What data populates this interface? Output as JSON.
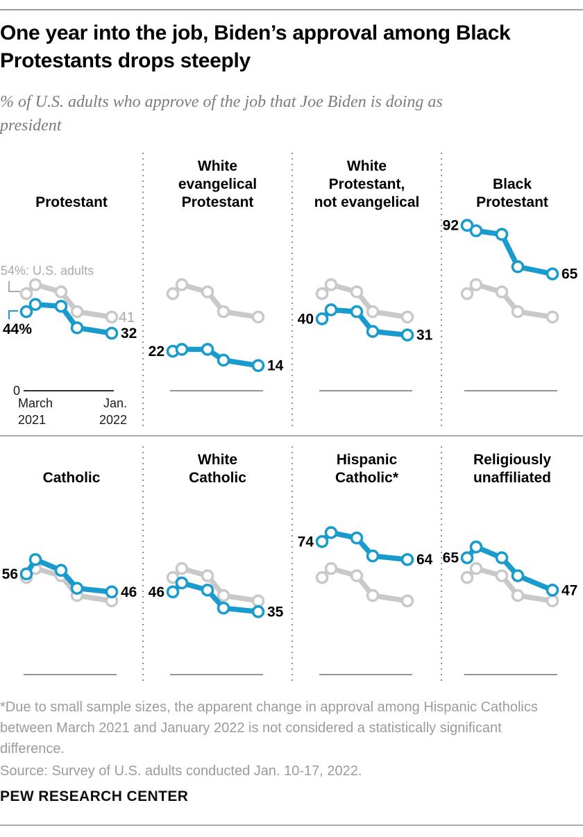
{
  "header": {
    "title": "One year into the job, Biden’s approval among Black Protestants drops steeply",
    "subtitle": "% of U.S. adults who approve of the job that Joe Biden is doing as president"
  },
  "colors": {
    "blue": "#1a9bcd",
    "gray_line": "#c9c9c9",
    "gray_text": "#a9a9a9",
    "axis_dark": "#111111",
    "axis_light": "#555555"
  },
  "us_adults_label": "54%: U.S. adults",
  "x_axis": {
    "zero_label": "0",
    "start_label_line1": "March",
    "start_label_line2": "2021",
    "end_label_line1": "Jan.",
    "end_label_line2": "2022",
    "x_tick_labels": [
      "March 2021",
      "Jan. 2022"
    ],
    "x_positions_months": [
      0,
      1,
      4,
      6,
      10
    ]
  },
  "y_axis": {
    "min": 0,
    "max": 100,
    "baseline_label": "0",
    "grid": false
  },
  "chart_data": [
    {
      "id": "protestant",
      "type": "line",
      "title": "Protestant",
      "heading_lines": [
        "Protestant"
      ],
      "start_label": "44%",
      "end_label": "32",
      "gray_end_label": "41",
      "series": [
        {
          "name": "Protestant",
          "color": "blue",
          "values": [
            44,
            48,
            47,
            35,
            32
          ]
        },
        {
          "name": "U.S. adults",
          "color": "gray",
          "values": [
            54,
            59,
            55,
            44,
            41
          ]
        }
      ]
    },
    {
      "id": "white-evangelical-protestant",
      "type": "line",
      "title": "White evangelical Protestant",
      "heading_lines": [
        "White",
        "evangelical",
        "Protestant"
      ],
      "start_label": "22",
      "end_label": "14",
      "series": [
        {
          "name": "White evangelical Protestant",
          "color": "blue",
          "values": [
            22,
            23,
            23,
            17,
            14
          ]
        },
        {
          "name": "U.S. adults",
          "color": "gray",
          "values": [
            54,
            59,
            55,
            44,
            41
          ]
        }
      ]
    },
    {
      "id": "white-protestant-not-evangelical",
      "type": "line",
      "title": "White Protestant, not evangelical",
      "heading_lines": [
        "White",
        "Protestant,",
        "not evangelical"
      ],
      "start_label": "40",
      "end_label": "31",
      "series": [
        {
          "name": "White Protestant, not evangelical",
          "color": "blue",
          "values": [
            40,
            45,
            44,
            33,
            31
          ]
        },
        {
          "name": "U.S. adults",
          "color": "gray",
          "values": [
            54,
            59,
            55,
            44,
            41
          ]
        }
      ]
    },
    {
      "id": "black-protestant",
      "type": "line",
      "title": "Black Protestant",
      "heading_lines": [
        "Black",
        "Protestant"
      ],
      "start_label": "92",
      "end_label": "65",
      "series": [
        {
          "name": "Black Protestant",
          "color": "blue",
          "values": [
            92,
            89,
            87,
            69,
            65
          ]
        },
        {
          "name": "U.S. adults",
          "color": "gray",
          "values": [
            54,
            59,
            55,
            44,
            41
          ]
        }
      ]
    },
    {
      "id": "catholic",
      "type": "line",
      "title": "Catholic",
      "heading_lines": [
        "Catholic"
      ],
      "start_label": "56",
      "end_label": "46",
      "series": [
        {
          "name": "Catholic",
          "color": "blue",
          "values": [
            56,
            64,
            58,
            48,
            46
          ]
        },
        {
          "name": "U.S. adults",
          "color": "gray",
          "values": [
            54,
            59,
            55,
            44,
            41
          ]
        }
      ]
    },
    {
      "id": "white-catholic",
      "type": "line",
      "title": "White Catholic",
      "heading_lines": [
        "White",
        "Catholic"
      ],
      "start_label": "46",
      "end_label": "35",
      "series": [
        {
          "name": "White Catholic",
          "color": "blue",
          "values": [
            46,
            51,
            47,
            37,
            35
          ]
        },
        {
          "name": "U.S. adults",
          "color": "gray",
          "values": [
            54,
            59,
            55,
            44,
            41
          ]
        }
      ]
    },
    {
      "id": "hispanic-catholic",
      "type": "line",
      "title": "Hispanic Catholic*",
      "heading_lines": [
        "Hispanic",
        "Catholic*"
      ],
      "start_label": "74",
      "end_label": "64",
      "series": [
        {
          "name": "Hispanic Catholic",
          "color": "blue",
          "values": [
            74,
            79,
            76,
            66,
            64
          ]
        },
        {
          "name": "U.S. adults",
          "color": "gray",
          "values": [
            54,
            59,
            55,
            44,
            41
          ]
        }
      ]
    },
    {
      "id": "religiously-unaffiliated",
      "type": "line",
      "title": "Religiously unaffiliated",
      "heading_lines": [
        "Religiously",
        "unaffiliated"
      ],
      "start_label": "65",
      "end_label": "47",
      "series": [
        {
          "name": "Religiously unaffiliated",
          "color": "blue",
          "values": [
            65,
            71,
            65,
            55,
            47
          ]
        },
        {
          "name": "U.S. adults",
          "color": "gray",
          "values": [
            54,
            59,
            55,
            44,
            41
          ]
        }
      ]
    }
  ],
  "footer": {
    "footnote": "*Due to small sample sizes, the apparent change in approval among Hispanic Catholics between March 2021 and January 2022 is not considered a statistically significant difference.",
    "source": "Source: Survey of U.S. adults conducted Jan. 10-17, 2022.",
    "brand": "PEW RESEARCH CENTER"
  }
}
